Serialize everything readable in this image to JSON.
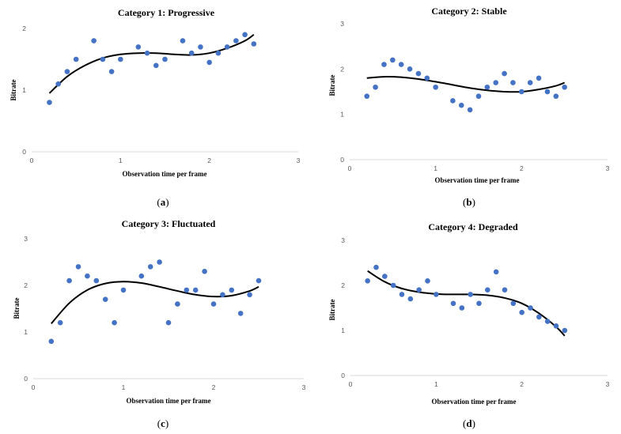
{
  "figure": {
    "x_label": "Observation time per frame",
    "y_label": "Bitrate"
  },
  "chart_data": [
    {
      "type": "scatter",
      "id": "a",
      "title": "Category 1: Progressive",
      "caption_letter": "a",
      "xlabel": "Observation time per frame",
      "ylabel": "Bitrate",
      "xlim": [
        0,
        3
      ],
      "ylim": [
        0,
        2
      ],
      "xticks": [
        "0",
        "1",
        "2",
        "3"
      ],
      "yticks": [
        "0",
        "1",
        "2"
      ],
      "ytick_values": [
        0,
        1,
        2
      ],
      "series": [
        {
          "name": "Bitrate",
          "x": [
            0.2,
            0.3,
            0.4,
            0.5,
            0.7,
            0.8,
            0.9,
            1.0,
            1.2,
            1.3,
            1.4,
            1.5,
            1.7,
            1.8,
            1.9,
            2.0,
            2.1,
            2.2,
            2.3,
            2.4,
            2.5
          ],
          "y": [
            0.8,
            1.1,
            1.3,
            1.5,
            1.8,
            1.5,
            1.3,
            1.5,
            1.7,
            1.6,
            1.4,
            1.5,
            1.8,
            1.6,
            1.7,
            1.45,
            1.6,
            1.7,
            1.8,
            1.9,
            1.75
          ]
        }
      ],
      "trendline": {
        "type": "polynomial",
        "x": [
          0.2,
          0.4,
          0.6,
          0.8,
          1.0,
          1.2,
          1.4,
          1.6,
          1.8,
          2.0,
          2.2,
          2.4,
          2.5
        ],
        "y": [
          0.95,
          1.22,
          1.4,
          1.52,
          1.58,
          1.6,
          1.6,
          1.58,
          1.57,
          1.6,
          1.68,
          1.8,
          1.9
        ]
      }
    },
    {
      "type": "scatter",
      "id": "b",
      "title": "Category 2: Stable",
      "caption_letter": "b",
      "xlabel": "Observation time per frame",
      "ylabel": "Bitrate",
      "xlim": [
        0,
        3
      ],
      "ylim": [
        0,
        3
      ],
      "xticks": [
        "0",
        "1",
        "2",
        "3"
      ],
      "yticks": [
        "0",
        "1",
        "2",
        "3"
      ],
      "ytick_values": [
        0,
        1,
        2,
        3
      ],
      "series": [
        {
          "name": "Bitrate",
          "x": [
            0.2,
            0.3,
            0.4,
            0.5,
            0.6,
            0.7,
            0.8,
            0.9,
            1.0,
            1.2,
            1.3,
            1.4,
            1.5,
            1.6,
            1.7,
            1.8,
            1.9,
            2.0,
            2.1,
            2.2,
            2.3,
            2.4,
            2.5
          ],
          "y": [
            1.4,
            1.6,
            2.1,
            2.2,
            2.1,
            2.0,
            1.9,
            1.8,
            1.6,
            1.3,
            1.2,
            1.1,
            1.4,
            1.6,
            1.7,
            1.9,
            1.7,
            1.5,
            1.7,
            1.8,
            1.5,
            1.4,
            1.6
          ]
        }
      ],
      "trendline": {
        "type": "polynomial",
        "x": [
          0.2,
          0.4,
          0.6,
          0.8,
          1.0,
          1.2,
          1.4,
          1.6,
          1.8,
          2.0,
          2.2,
          2.4,
          2.5
        ],
        "y": [
          1.8,
          1.83,
          1.82,
          1.78,
          1.72,
          1.65,
          1.58,
          1.53,
          1.5,
          1.5,
          1.55,
          1.63,
          1.7
        ]
      }
    },
    {
      "type": "scatter",
      "id": "c",
      "title": "Category 3: Fluctuated",
      "caption_letter": "c",
      "xlabel": "Observation time per frame",
      "ylabel": "Bitrate",
      "xlim": [
        0,
        3
      ],
      "ylim": [
        0,
        3
      ],
      "xticks": [
        "0",
        "1",
        "2",
        "3"
      ],
      "yticks": [
        "0",
        "1",
        "2",
        "3"
      ],
      "ytick_values": [
        0,
        1,
        2,
        3
      ],
      "series": [
        {
          "name": "Bitrate",
          "x": [
            0.2,
            0.3,
            0.4,
            0.5,
            0.6,
            0.7,
            0.8,
            0.9,
            1.0,
            1.2,
            1.3,
            1.4,
            1.5,
            1.6,
            1.7,
            1.8,
            1.9,
            2.0,
            2.1,
            2.2,
            2.3,
            2.4,
            2.5
          ],
          "y": [
            0.8,
            1.2,
            2.1,
            2.4,
            2.2,
            2.1,
            1.7,
            1.2,
            1.9,
            2.2,
            2.4,
            2.5,
            1.2,
            1.6,
            1.9,
            1.9,
            2.3,
            1.6,
            1.8,
            1.9,
            1.4,
            1.8,
            2.1
          ]
        }
      ],
      "trendline": {
        "type": "polynomial",
        "x": [
          0.2,
          0.4,
          0.6,
          0.8,
          1.0,
          1.2,
          1.4,
          1.6,
          1.8,
          2.0,
          2.2,
          2.4,
          2.5
        ],
        "y": [
          1.18,
          1.62,
          1.9,
          2.04,
          2.08,
          2.05,
          1.97,
          1.88,
          1.8,
          1.76,
          1.78,
          1.88,
          1.97
        ]
      }
    },
    {
      "type": "scatter",
      "id": "d",
      "title": "Category 4: Degraded",
      "caption_letter": "d",
      "xlabel": "Observation time per frame",
      "ylabel": "Bitrate",
      "xlim": [
        0,
        3
      ],
      "ylim": [
        0,
        3
      ],
      "xticks": [
        "0",
        "1",
        "2",
        "3"
      ],
      "yticks": [
        "0",
        "1",
        "2",
        "3"
      ],
      "ytick_values": [
        0,
        1,
        2,
        3
      ],
      "series": [
        {
          "name": "Bitrate",
          "x": [
            0.2,
            0.3,
            0.4,
            0.5,
            0.6,
            0.7,
            0.8,
            0.9,
            1.0,
            1.2,
            1.3,
            1.4,
            1.5,
            1.6,
            1.7,
            1.8,
            1.9,
            2.0,
            2.1,
            2.2,
            2.3,
            2.4,
            2.5
          ],
          "y": [
            2.1,
            2.4,
            2.2,
            2.0,
            1.8,
            1.7,
            1.9,
            2.1,
            1.8,
            1.6,
            1.5,
            1.8,
            1.6,
            1.9,
            2.3,
            1.9,
            1.6,
            1.4,
            1.5,
            1.3,
            1.2,
            1.1,
            1.0
          ]
        }
      ],
      "trendline": {
        "type": "polynomial",
        "x": [
          0.2,
          0.4,
          0.6,
          0.8,
          1.0,
          1.2,
          1.4,
          1.6,
          1.8,
          2.0,
          2.2,
          2.4,
          2.5
        ],
        "y": [
          2.32,
          2.08,
          1.93,
          1.85,
          1.81,
          1.8,
          1.8,
          1.78,
          1.72,
          1.6,
          1.38,
          1.08,
          0.88
        ]
      }
    }
  ]
}
